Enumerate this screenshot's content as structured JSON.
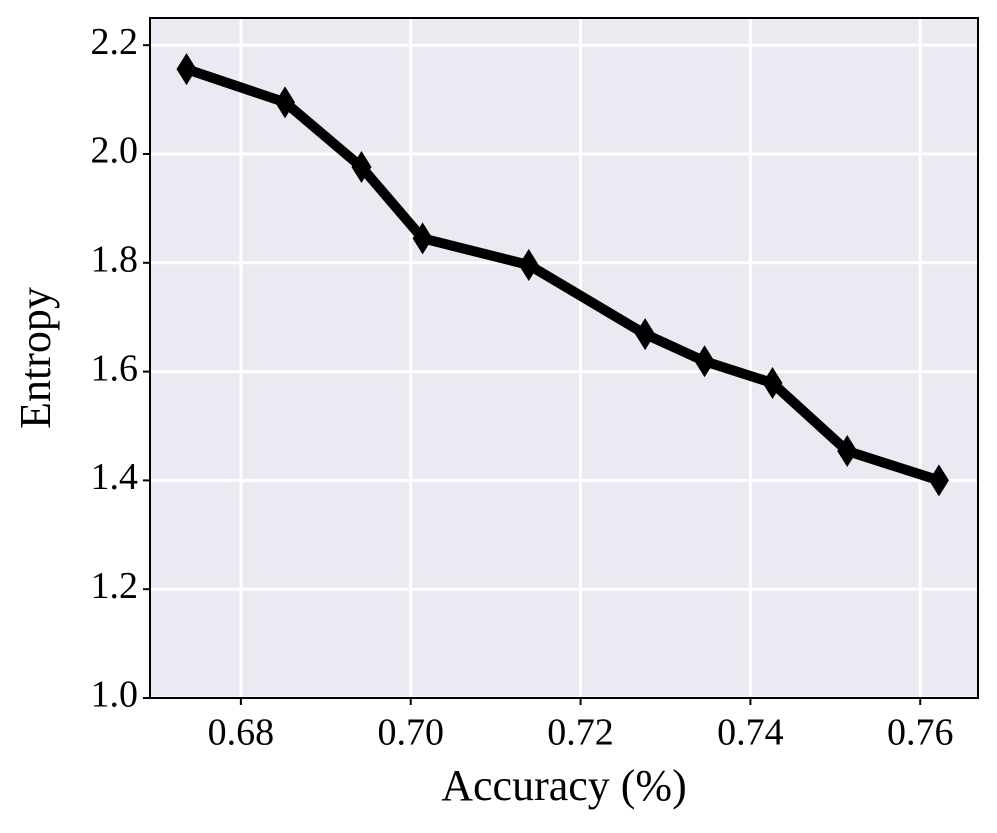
{
  "chart_data": {
    "type": "line",
    "x_label": "Accuracy (%)",
    "y_label": "Entropy",
    "x": [
      0.6736,
      0.6852,
      0.6942,
      0.7014,
      0.7139,
      0.7276,
      0.7346,
      0.7426,
      0.7514,
      0.7622
    ],
    "values": [
      2.156,
      2.095,
      1.976,
      1.845,
      1.796,
      1.669,
      1.619,
      1.579,
      1.454,
      1.4
    ],
    "color": "#000000",
    "xlim": [
      0.6693,
      0.7668
    ],
    "xticks": [
      0.68,
      {
        "value": 0.7,
        "label": "0.70"
      },
      0.72,
      0.74,
      0.76
    ],
    "ylim": [
      1.0,
      2.25
    ],
    "yticks": [
      {
        "value": 1.0,
        "label": "1.0"
      },
      1.2,
      1.4,
      1.6,
      1.8,
      {
        "value": 2.0,
        "label": "2.0"
      },
      2.2
    ],
    "grid": true
  }
}
